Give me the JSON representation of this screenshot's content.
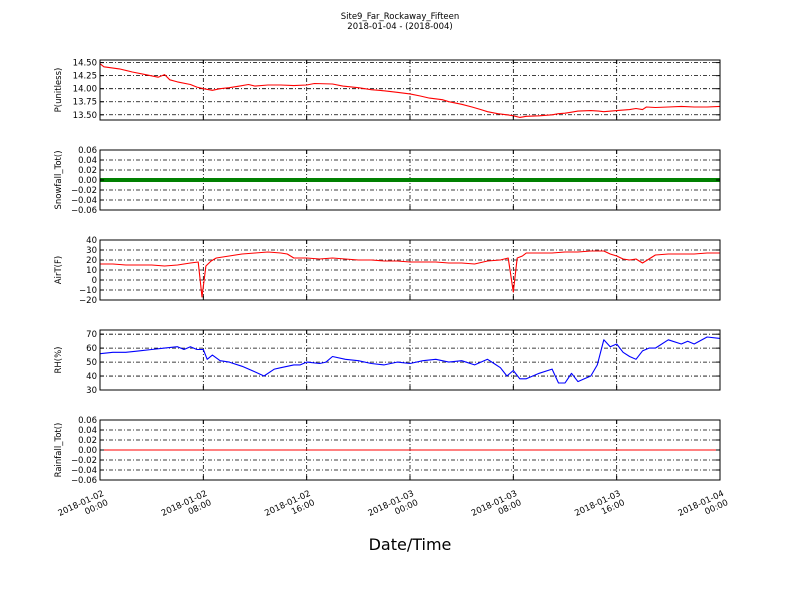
{
  "chart_data": {
    "title": "Site9_Far_Rockaway_Fifteen",
    "subtitle": "2018-01-04 - (2018-004)",
    "xlabel": "Date/Time",
    "x_ticks": [
      {
        "line1": "2018-01-02",
        "line2": "00:00",
        "hours": 0
      },
      {
        "line1": "2018-01-02",
        "line2": "08:00",
        "hours": 8
      },
      {
        "line1": "2018-01-02",
        "line2": "16:00",
        "hours": 16
      },
      {
        "line1": "2018-01-03",
        "line2": "00:00",
        "hours": 24
      },
      {
        "line1": "2018-01-03",
        "line2": "08:00",
        "hours": 32
      },
      {
        "line1": "2018-01-03",
        "line2": "16:00",
        "hours": 40
      },
      {
        "line1": "2018-01-04",
        "line2": "00:00",
        "hours": 48
      }
    ],
    "x_range_hours": [
      0,
      48
    ],
    "grid": true,
    "panels": [
      {
        "type": "line",
        "ylabel": "P(unitless)",
        "color": "#ff0000",
        "ylim": [
          13.4,
          14.55
        ],
        "yticks": [
          "14.50",
          "14.25",
          "14.00",
          "13.75",
          "13.50"
        ],
        "ytick_values": [
          14.5,
          14.25,
          14.0,
          13.75,
          13.5
        ],
        "x": [
          0,
          0.3,
          1.5,
          2.5,
          3.5,
          4.5,
          5,
          5.4,
          6,
          7,
          7.5,
          8,
          8.7,
          9.3,
          10,
          10.8,
          11.5,
          12,
          13,
          14,
          15,
          16,
          16.6,
          18,
          18.8,
          20,
          21,
          22,
          23,
          24,
          24.8,
          25.5,
          26.5,
          27,
          28,
          28.8,
          29.5,
          30,
          30.8,
          31.5,
          32,
          32.5,
          33,
          34,
          35,
          35.5,
          36,
          36.5,
          37,
          38,
          38.6,
          39,
          40,
          41,
          41.5,
          42,
          42.3,
          43,
          44,
          45,
          46,
          47,
          48
        ],
        "values": [
          14.48,
          14.42,
          14.38,
          14.32,
          14.27,
          14.22,
          14.27,
          14.17,
          14.13,
          14.08,
          14.03,
          14.0,
          13.97,
          14.0,
          14.02,
          14.05,
          14.08,
          14.05,
          14.07,
          14.07,
          14.06,
          14.07,
          14.1,
          14.09,
          14.05,
          14.02,
          13.98,
          13.96,
          13.93,
          13.9,
          13.86,
          13.82,
          13.79,
          13.75,
          13.7,
          13.65,
          13.6,
          13.56,
          13.52,
          13.5,
          13.48,
          13.45,
          13.47,
          13.48,
          13.5,
          13.52,
          13.53,
          13.55,
          13.57,
          13.58,
          13.57,
          13.56,
          13.58,
          13.6,
          13.62,
          13.6,
          13.65,
          13.64,
          13.65,
          13.66,
          13.65,
          13.65,
          13.66
        ]
      },
      {
        "type": "line",
        "ylabel": "Snowfall_Tot()",
        "color": "#008000",
        "line_width": 4,
        "ylim": [
          -0.06,
          0.06
        ],
        "yticks": [
          "0.06",
          "0.04",
          "0.02",
          "0.00",
          "−0.02",
          "−0.04",
          "−0.06"
        ],
        "ytick_values": [
          0.06,
          0.04,
          0.02,
          0.0,
          -0.02,
          -0.04,
          -0.06
        ],
        "x": [
          0,
          48
        ],
        "values": [
          0,
          0
        ]
      },
      {
        "type": "line",
        "ylabel": "AirT(F)",
        "color": "#ff0000",
        "ylim": [
          -20,
          40
        ],
        "yticks": [
          "40",
          "30",
          "20",
          "10",
          "0",
          "−10",
          "−20"
        ],
        "ytick_values": [
          40,
          30,
          20,
          10,
          0,
          -10,
          -20
        ],
        "x": [
          0,
          1,
          2,
          3,
          4,
          5,
          6,
          7,
          7.6,
          7.9,
          8.2,
          8.6,
          9,
          9.5,
          10,
          11,
          12,
          13,
          14,
          14.5,
          15,
          16,
          17,
          18,
          19,
          20,
          21,
          22,
          23,
          24,
          25,
          26,
          27,
          28,
          29,
          30,
          31,
          31.6,
          32,
          32.3,
          32.7,
          33,
          34,
          35,
          36,
          37,
          38,
          39,
          39.5,
          40,
          40.5,
          41,
          41.5,
          42,
          42.5,
          43,
          44,
          45,
          46,
          47,
          48
        ],
        "values": [
          16,
          16,
          15,
          15,
          15,
          14,
          15,
          17,
          18,
          -17,
          14,
          19,
          22,
          23,
          24,
          26,
          27,
          28,
          27,
          26,
          22,
          22,
          21,
          22,
          21,
          20,
          20,
          19,
          19,
          18,
          18,
          18,
          17,
          17,
          16,
          19,
          20,
          22,
          -12,
          22,
          24,
          27,
          27,
          27,
          28,
          28,
          29,
          29,
          26,
          24,
          21,
          20,
          21,
          17,
          21,
          25,
          26,
          26,
          26,
          27,
          27
        ]
      },
      {
        "type": "line",
        "ylabel": "RH(%)",
        "color": "#0000ff",
        "ylim": [
          30,
          73
        ],
        "yticks": [
          "70",
          "60",
          "50",
          "40",
          "30"
        ],
        "ytick_values": [
          70,
          60,
          50,
          40,
          30
        ],
        "x": [
          0,
          1,
          2,
          3,
          4,
          5,
          6,
          6.5,
          7,
          7.5,
          8,
          8.3,
          8.7,
          9.3,
          10,
          11,
          12,
          12.7,
          13.5,
          14,
          15,
          15.5,
          16,
          17,
          17.5,
          18,
          19,
          20,
          21,
          22,
          23,
          24,
          25,
          26,
          27,
          28,
          29,
          30,
          30.5,
          31,
          31.5,
          32,
          32.5,
          33,
          34,
          35,
          35.5,
          36,
          36.5,
          37,
          37.5,
          38,
          38.5,
          39,
          39.5,
          40,
          40.5,
          41,
          41.5,
          42,
          42.5,
          43,
          44,
          45,
          45.5,
          46,
          47,
          48
        ],
        "values": [
          56,
          57,
          57,
          58,
          59,
          60,
          61,
          59,
          61,
          59,
          59,
          52,
          55,
          51,
          50,
          47,
          43,
          40,
          45,
          46,
          48,
          48,
          50,
          49,
          50,
          54,
          52,
          51,
          49,
          48,
          50,
          49,
          51,
          52,
          50,
          51,
          48,
          52,
          49,
          46,
          40,
          44,
          38,
          38,
          42,
          45,
          35,
          35,
          42,
          36,
          38,
          40,
          48,
          66,
          61,
          63,
          57,
          54,
          52,
          58,
          60,
          60,
          66,
          63,
          65,
          63,
          68,
          67
        ]
      },
      {
        "type": "line",
        "ylabel": "Rainfall_Tot()",
        "color": "#ff0000",
        "ylim": [
          -0.06,
          0.06
        ],
        "yticks": [
          "0.06",
          "0.04",
          "0.02",
          "0.00",
          "−0.02",
          "−0.04",
          "−0.06"
        ],
        "ytick_values": [
          0.06,
          0.04,
          0.02,
          0.0,
          -0.02,
          -0.04,
          -0.06
        ],
        "x": [
          0,
          48
        ],
        "values": [
          0,
          0
        ]
      }
    ]
  }
}
